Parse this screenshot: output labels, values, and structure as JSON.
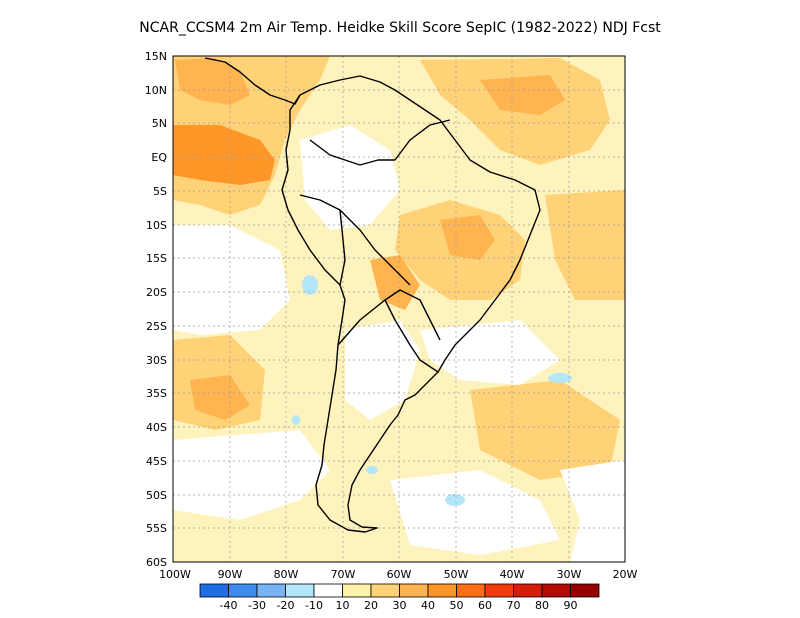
{
  "title": "NCAR_CCSM4  2m Air Temp. Heidke Skill Score SepIC (1982-2022) NDJ Fcst",
  "lat_labels": [
    "15N",
    "10N",
    "5N",
    "EQ",
    "5S",
    "10S",
    "15S",
    "20S",
    "25S",
    "30S",
    "35S",
    "40S",
    "45S",
    "50S",
    "55S",
    "60S"
  ],
  "lon_labels": [
    "100W",
    "90W",
    "80W",
    "70W",
    "60W",
    "50W",
    "40W",
    "30W",
    "20W"
  ],
  "colorbar": {
    "labels": [
      "-40",
      "-30",
      "-20",
      "-10",
      "10",
      "20",
      "30",
      "40",
      "50",
      "60",
      "70",
      "80",
      "90"
    ],
    "colors": [
      "#1e6ee6",
      "#3c8cf0",
      "#78b4f5",
      "#b4e6fa",
      "#ffffff",
      "#fff0aa",
      "#ffd278",
      "#ffb450",
      "#ff9628",
      "#ff6e14",
      "#f03c0a",
      "#d21e05",
      "#b40a00",
      "#960000"
    ]
  },
  "colors": {
    "land_outline": "#000000",
    "grid": "#9a9a9a",
    "warm": "#ffd278",
    "cool": "#b4e6fa"
  }
}
